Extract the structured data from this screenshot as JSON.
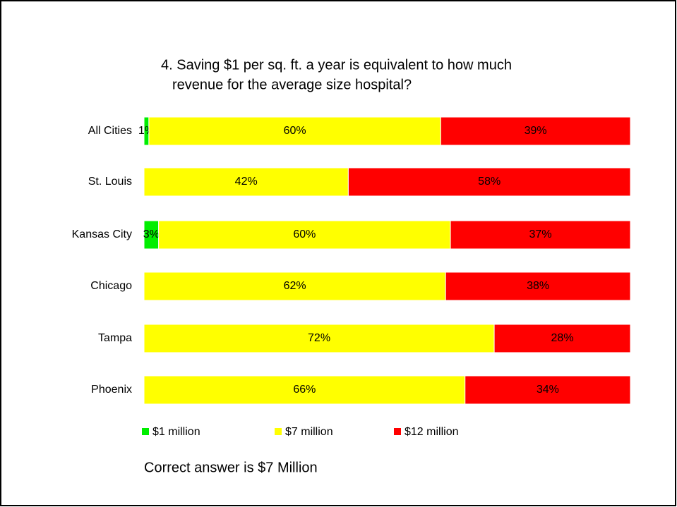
{
  "chart_data": {
    "type": "stacked_barh",
    "title": [
      "4. Saving $1 per sq. ft. a year is equivalent to how much",
      "revenue for the average size hospital?"
    ],
    "categories": [
      "All Cities",
      "St. Louis",
      "Kansas City",
      "Chicago",
      "Tampa",
      "Phoenix"
    ],
    "series": [
      {
        "name": "$1 million",
        "color": "#00ee00",
        "values": [
          1,
          0,
          3,
          0,
          0,
          0
        ],
        "value_labels": [
          "1%",
          null,
          "3%",
          null,
          null,
          null
        ]
      },
      {
        "name": "$7 million",
        "color": "#ffff00",
        "values": [
          60,
          42,
          60,
          62,
          72,
          66
        ],
        "value_labels": [
          "60%",
          "42%",
          "60%",
          "62%",
          "72%",
          "66%"
        ]
      },
      {
        "name": "$12 million",
        "color": "#ff0000",
        "values": [
          39,
          58,
          37,
          38,
          28,
          34
        ],
        "value_labels": [
          "39%",
          "58%",
          "37%",
          "38%",
          "28%",
          "34%"
        ]
      }
    ],
    "xlim": [
      0,
      100
    ],
    "annotation": "Correct answer is $7 Million",
    "legend": "bottom"
  }
}
